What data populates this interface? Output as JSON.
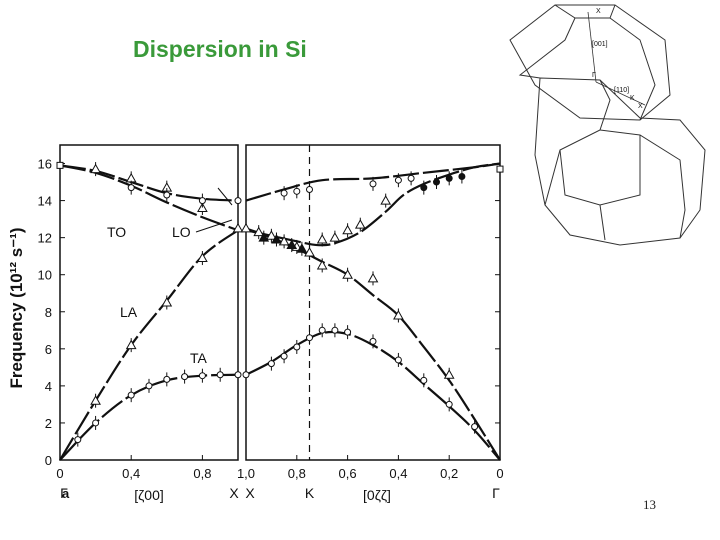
{
  "slide": {
    "title": "Dispersion in Si",
    "page_number": "13"
  },
  "bz_figure": {
    "labels": [
      "X",
      "[001]",
      "Γ",
      "[110]",
      "K",
      "X"
    ]
  },
  "chart_data": {
    "type": "scatter",
    "title": "",
    "ylabel": "Frequency (10¹² s⁻¹)",
    "ylim": [
      0,
      17
    ],
    "yticks": [
      0,
      2,
      4,
      6,
      8,
      10,
      12,
      14,
      16
    ],
    "panel_label": "a",
    "panels": [
      {
        "name": "left",
        "xlim": [
          0,
          1.0
        ],
        "xticks": [
          "0",
          "0,4",
          "0,8"
        ],
        "xtick_values": [
          0,
          0.4,
          0.8
        ],
        "direction_label": "[ζ00]",
        "sym_start": "Γ",
        "sym_end": "X"
      },
      {
        "name": "right",
        "xlim": [
          1.0,
          0
        ],
        "xticks": [
          "1,0",
          "0,8",
          "0,6",
          "0,4",
          "0,2",
          "0"
        ],
        "xtick_values": [
          1.0,
          0.8,
          0.6,
          0.4,
          0.2,
          0
        ],
        "direction_label": "[0ζζ]",
        "sym_start": "X",
        "sym_mid": "K",
        "sym_mid_value": 0.75,
        "sym_end": "Γ"
      }
    ],
    "branch_labels": [
      "TO",
      "LO",
      "LA",
      "TA"
    ],
    "series": [
      {
        "name": "TO",
        "panel": "left",
        "curve": [
          [
            0,
            15.9
          ],
          [
            0.2,
            15.6
          ],
          [
            0.4,
            15.0
          ],
          [
            0.6,
            14.4
          ],
          [
            0.8,
            14.1
          ],
          [
            1.0,
            14.0
          ]
        ]
      },
      {
        "name": "LO",
        "panel": "left",
        "curve": [
          [
            0,
            15.9
          ],
          [
            0.2,
            15.5
          ],
          [
            0.4,
            14.8
          ],
          [
            0.6,
            13.9
          ],
          [
            0.8,
            13.1
          ],
          [
            1.0,
            12.4
          ]
        ]
      },
      {
        "name": "LA",
        "panel": "left",
        "curve": [
          [
            0,
            0
          ],
          [
            0.2,
            3.2
          ],
          [
            0.4,
            6.2
          ],
          [
            0.6,
            8.6
          ],
          [
            0.8,
            11.0
          ],
          [
            1.0,
            12.4
          ]
        ]
      },
      {
        "name": "TA",
        "panel": "left",
        "curve": [
          [
            0,
            0
          ],
          [
            0.2,
            2.0
          ],
          [
            0.4,
            3.5
          ],
          [
            0.6,
            4.3
          ],
          [
            0.8,
            4.55
          ],
          [
            1.0,
            4.6
          ]
        ]
      },
      {
        "panel": "right",
        "curve": [
          [
            1.0,
            14.0
          ],
          [
            0.85,
            14.6
          ],
          [
            0.7,
            15.1
          ],
          [
            0.5,
            15.2
          ],
          [
            0.3,
            15.5
          ],
          [
            0.1,
            15.8
          ],
          [
            0,
            16.0
          ]
        ]
      },
      {
        "panel": "right",
        "curve": [
          [
            1.0,
            12.4
          ],
          [
            0.9,
            12.1
          ],
          [
            0.8,
            11.8
          ],
          [
            0.72,
            11.6
          ],
          [
            0.65,
            11.7
          ],
          [
            0.55,
            12.3
          ],
          [
            0.45,
            13.4
          ],
          [
            0.38,
            14.3
          ],
          [
            0.3,
            14.9
          ],
          [
            0.2,
            15.4
          ],
          [
            0.1,
            15.8
          ],
          [
            0,
            16.0
          ]
        ]
      },
      {
        "panel": "right",
        "curve": [
          [
            1.0,
            12.5
          ],
          [
            0.9,
            12.0
          ],
          [
            0.8,
            11.4
          ],
          [
            0.7,
            10.7
          ],
          [
            0.6,
            10.0
          ],
          [
            0.5,
            8.9
          ],
          [
            0.4,
            7.8
          ],
          [
            0.3,
            6.1
          ],
          [
            0.2,
            4.3
          ],
          [
            0.1,
            2.2
          ],
          [
            0,
            0
          ]
        ]
      },
      {
        "panel": "right",
        "curve": [
          [
            1.0,
            4.6
          ],
          [
            0.9,
            5.3
          ],
          [
            0.8,
            6.2
          ],
          [
            0.7,
            6.85
          ],
          [
            0.6,
            6.8
          ],
          [
            0.5,
            6.2
          ],
          [
            0.4,
            5.3
          ],
          [
            0.3,
            4.1
          ],
          [
            0.2,
            2.9
          ],
          [
            0.1,
            1.6
          ],
          [
            0,
            0
          ]
        ]
      }
    ],
    "measured_points": [
      {
        "panel": "left",
        "marker": "square",
        "points": [
          [
            0,
            15.9
          ]
        ]
      },
      {
        "panel": "left",
        "marker": "triangle",
        "points": [
          [
            0.2,
            15.7
          ],
          [
            0.4,
            15.2
          ],
          [
            0.6,
            14.7
          ],
          [
            0.8,
            13.6
          ],
          [
            1.0,
            12.5
          ],
          [
            0.2,
            3.2
          ],
          [
            0.4,
            6.2
          ],
          [
            0.6,
            8.5
          ],
          [
            0.8,
            10.9
          ]
        ]
      },
      {
        "panel": "left",
        "marker": "circle",
        "points": [
          [
            0.4,
            14.7
          ],
          [
            0.6,
            14.3
          ],
          [
            0.8,
            14.0
          ],
          [
            1.0,
            14.0
          ],
          [
            0.1,
            1.1
          ],
          [
            0.2,
            2.0
          ],
          [
            0.4,
            3.5
          ],
          [
            0.5,
            4.0
          ],
          [
            0.6,
            4.35
          ],
          [
            0.7,
            4.5
          ],
          [
            0.8,
            4.55
          ],
          [
            0.9,
            4.6
          ],
          [
            1.0,
            4.6
          ]
        ]
      },
      {
        "panel": "right",
        "marker": "square",
        "points": [
          [
            0,
            15.7
          ]
        ]
      },
      {
        "panel": "right",
        "marker": "triangle",
        "points": [
          [
            1.0,
            12.5
          ],
          [
            0.95,
            12.3
          ],
          [
            0.9,
            12.1
          ],
          [
            0.85,
            11.8
          ],
          [
            0.8,
            11.5
          ],
          [
            0.75,
            11.2
          ],
          [
            0.7,
            11.9
          ],
          [
            0.65,
            12.0
          ],
          [
            0.6,
            12.4
          ],
          [
            0.55,
            12.7
          ],
          [
            0.45,
            14.0
          ],
          [
            0.7,
            10.5
          ],
          [
            0.6,
            10.0
          ],
          [
            0.5,
            9.8
          ],
          [
            0.4,
            7.8
          ],
          [
            0.2,
            4.6
          ]
        ]
      },
      {
        "panel": "right",
        "marker": "triangle-filled",
        "points": [
          [
            0.93,
            12.0
          ],
          [
            0.88,
            11.9
          ],
          [
            0.82,
            11.6
          ],
          [
            0.78,
            11.4
          ]
        ]
      },
      {
        "panel": "right",
        "marker": "circle",
        "points": [
          [
            0.8,
            14.5
          ],
          [
            0.75,
            14.6
          ],
          [
            0.85,
            14.4
          ],
          [
            0.5,
            14.9
          ],
          [
            0.4,
            15.1
          ],
          [
            0.35,
            15.2
          ],
          [
            1.0,
            4.6
          ],
          [
            0.9,
            5.2
          ],
          [
            0.85,
            5.6
          ],
          [
            0.8,
            6.1
          ],
          [
            0.75,
            6.6
          ],
          [
            0.7,
            7.0
          ],
          [
            0.65,
            7.0
          ],
          [
            0.6,
            6.9
          ],
          [
            0.5,
            6.4
          ],
          [
            0.4,
            5.4
          ],
          [
            0.3,
            4.3
          ],
          [
            0.2,
            3.0
          ],
          [
            0.1,
            1.8
          ]
        ]
      },
      {
        "panel": "right",
        "marker": "circle-filled",
        "points": [
          [
            0.3,
            14.7
          ],
          [
            0.25,
            15.0
          ],
          [
            0.2,
            15.2
          ],
          [
            0.15,
            15.3
          ]
        ]
      }
    ]
  }
}
